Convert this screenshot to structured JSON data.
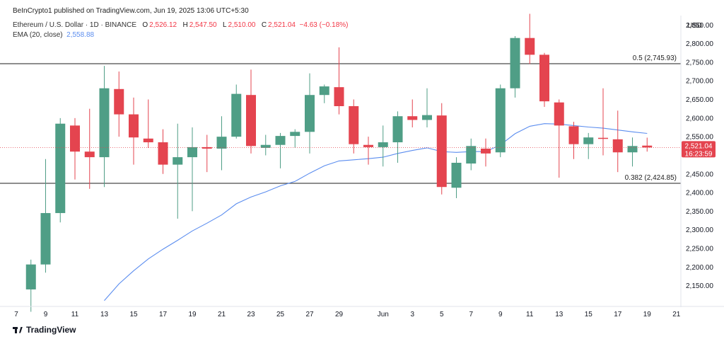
{
  "publisher": "BeInCrypto1 published on TradingView.com, Jun 19, 2025 13:06 UTC+5:30",
  "legend": {
    "symbol": "Ethereum / U.S. Dollar · 1D · BINANCE",
    "open_label": "O",
    "open": "2,526.12",
    "high_label": "H",
    "high": "2,547.50",
    "low_label": "L",
    "low": "2,510.00",
    "close_label": "C",
    "close": "2,521.04",
    "change": "−4.63 (−0.18%)",
    "ema_label": "EMA (20, close)",
    "ema_value": "2,558.88"
  },
  "axis_currency": "USD",
  "footer": "TradingView",
  "colors": {
    "up": "#4f9e86",
    "down": "#e4444f",
    "ema": "#5b8def",
    "level": "#4a4a4a"
  },
  "chart_data": {
    "type": "candlestick",
    "x_dates": [
      "May 8",
      "May 9",
      "May 10",
      "May 11",
      "May 12",
      "May 13",
      "May 14",
      "May 15",
      "May 16",
      "May 17",
      "May 18",
      "May 19",
      "May 20",
      "May 21",
      "May 22",
      "May 23",
      "May 24",
      "May 25",
      "May 26",
      "May 27",
      "May 28",
      "May 29",
      "May 30",
      "May 31",
      "Jun 1",
      "Jun 2",
      "Jun 3",
      "Jun 4",
      "Jun 5",
      "Jun 6",
      "Jun 7",
      "Jun 8",
      "Jun 9",
      "Jun 10",
      "Jun 11",
      "Jun 12",
      "Jun 13",
      "Jun 14",
      "Jun 15",
      "Jun 16",
      "Jun 17",
      "Jun 18",
      "Jun 19"
    ],
    "candles": [
      {
        "o": 2140,
        "h": 2220,
        "l": 2080,
        "c": 2207
      },
      {
        "o": 2207,
        "h": 2490,
        "l": 2185,
        "c": 2345
      },
      {
        "o": 2345,
        "h": 2600,
        "l": 2320,
        "c": 2585
      },
      {
        "o": 2580,
        "h": 2600,
        "l": 2435,
        "c": 2510
      },
      {
        "o": 2510,
        "h": 2625,
        "l": 2410,
        "c": 2495
      },
      {
        "o": 2495,
        "h": 2740,
        "l": 2415,
        "c": 2680
      },
      {
        "o": 2678,
        "h": 2725,
        "l": 2550,
        "c": 2610
      },
      {
        "o": 2610,
        "h": 2655,
        "l": 2475,
        "c": 2548
      },
      {
        "o": 2545,
        "h": 2650,
        "l": 2520,
        "c": 2535
      },
      {
        "o": 2535,
        "h": 2570,
        "l": 2450,
        "c": 2475
      },
      {
        "o": 2475,
        "h": 2585,
        "l": 2330,
        "c": 2495
      },
      {
        "o": 2495,
        "h": 2575,
        "l": 2350,
        "c": 2522
      },
      {
        "o": 2522,
        "h": 2555,
        "l": 2455,
        "c": 2518
      },
      {
        "o": 2518,
        "h": 2605,
        "l": 2460,
        "c": 2550
      },
      {
        "o": 2550,
        "h": 2690,
        "l": 2545,
        "c": 2665
      },
      {
        "o": 2662,
        "h": 2730,
        "l": 2505,
        "c": 2525
      },
      {
        "o": 2520,
        "h": 2555,
        "l": 2500,
        "c": 2528
      },
      {
        "o": 2528,
        "h": 2560,
        "l": 2465,
        "c": 2552
      },
      {
        "o": 2552,
        "h": 2570,
        "l": 2520,
        "c": 2563
      },
      {
        "o": 2563,
        "h": 2720,
        "l": 2505,
        "c": 2662
      },
      {
        "o": 2662,
        "h": 2690,
        "l": 2640,
        "c": 2685
      },
      {
        "o": 2683,
        "h": 2790,
        "l": 2610,
        "c": 2632
      },
      {
        "o": 2632,
        "h": 2650,
        "l": 2505,
        "c": 2530
      },
      {
        "o": 2528,
        "h": 2550,
        "l": 2475,
        "c": 2522
      },
      {
        "o": 2522,
        "h": 2580,
        "l": 2470,
        "c": 2535
      },
      {
        "o": 2535,
        "h": 2618,
        "l": 2480,
        "c": 2605
      },
      {
        "o": 2605,
        "h": 2650,
        "l": 2575,
        "c": 2595
      },
      {
        "o": 2595,
        "h": 2680,
        "l": 2575,
        "c": 2608
      },
      {
        "o": 2607,
        "h": 2640,
        "l": 2395,
        "c": 2415
      },
      {
        "o": 2413,
        "h": 2495,
        "l": 2385,
        "c": 2480
      },
      {
        "o": 2478,
        "h": 2545,
        "l": 2460,
        "c": 2525
      },
      {
        "o": 2518,
        "h": 2545,
        "l": 2470,
        "c": 2505
      },
      {
        "o": 2508,
        "h": 2690,
        "l": 2495,
        "c": 2680
      },
      {
        "o": 2680,
        "h": 2820,
        "l": 2655,
        "c": 2815
      },
      {
        "o": 2815,
        "h": 2880,
        "l": 2745,
        "c": 2770
      },
      {
        "o": 2770,
        "h": 2775,
        "l": 2630,
        "c": 2645
      },
      {
        "o": 2642,
        "h": 2650,
        "l": 2440,
        "c": 2580
      },
      {
        "o": 2578,
        "h": 2590,
        "l": 2490,
        "c": 2530
      },
      {
        "o": 2530,
        "h": 2560,
        "l": 2490,
        "c": 2548
      },
      {
        "o": 2547,
        "h": 2680,
        "l": 2500,
        "c": 2545
      },
      {
        "o": 2543,
        "h": 2620,
        "l": 2455,
        "c": 2508
      },
      {
        "o": 2508,
        "h": 2548,
        "l": 2470,
        "c": 2525
      },
      {
        "o": 2526.12,
        "h": 2547.5,
        "l": 2510,
        "c": 2521.04
      }
    ],
    "ema": [
      {
        "date": "May 13",
        "v": 2110
      },
      {
        "date": "May 14",
        "v": 2155
      },
      {
        "date": "May 15",
        "v": 2190
      },
      {
        "date": "May 16",
        "v": 2222
      },
      {
        "date": "May 17",
        "v": 2248
      },
      {
        "date": "May 18",
        "v": 2272
      },
      {
        "date": "May 19",
        "v": 2297
      },
      {
        "date": "May 20",
        "v": 2318
      },
      {
        "date": "May 21",
        "v": 2340
      },
      {
        "date": "May 22",
        "v": 2370
      },
      {
        "date": "May 23",
        "v": 2388
      },
      {
        "date": "May 24",
        "v": 2402
      },
      {
        "date": "May 25",
        "v": 2418
      },
      {
        "date": "May 26",
        "v": 2430
      },
      {
        "date": "May 27",
        "v": 2452
      },
      {
        "date": "May 28",
        "v": 2472
      },
      {
        "date": "May 29",
        "v": 2485
      },
      {
        "date": "May 30",
        "v": 2488
      },
      {
        "date": "May 31",
        "v": 2491
      },
      {
        "date": "Jun 1",
        "v": 2495
      },
      {
        "date": "Jun 2",
        "v": 2505
      },
      {
        "date": "Jun 3",
        "v": 2513
      },
      {
        "date": "Jun 4",
        "v": 2520
      },
      {
        "date": "Jun 5",
        "v": 2510
      },
      {
        "date": "Jun 6",
        "v": 2508
      },
      {
        "date": "Jun 7",
        "v": 2510
      },
      {
        "date": "Jun 8",
        "v": 2510
      },
      {
        "date": "Jun 9",
        "v": 2528
      },
      {
        "date": "Jun 10",
        "v": 2558
      },
      {
        "date": "Jun 11",
        "v": 2578
      },
      {
        "date": "Jun 12",
        "v": 2585
      },
      {
        "date": "Jun 13",
        "v": 2584
      },
      {
        "date": "Jun 14",
        "v": 2580
      },
      {
        "date": "Jun 15",
        "v": 2576
      },
      {
        "date": "Jun 16",
        "v": 2573
      },
      {
        "date": "Jun 17",
        "v": 2568
      },
      {
        "date": "Jun 18",
        "v": 2563
      },
      {
        "date": "Jun 19",
        "v": 2558.88
      }
    ],
    "levels": [
      {
        "value": 2745.93,
        "label": "0.5 (2,745.93)"
      },
      {
        "value": 2424.85,
        "label": "0.382 (2,424.85)"
      }
    ],
    "last_price": {
      "value": 2521.04,
      "label": "2,521.04",
      "countdown": "16:23:59"
    },
    "y_ticks": [
      2150,
      2200,
      2250,
      2300,
      2350,
      2400,
      2450,
      2500,
      2550,
      2600,
      2650,
      2700,
      2750,
      2800,
      2850
    ],
    "y_tick_labels": [
      "2,150.00",
      "2,200.00",
      "2,250.00",
      "2,300.00",
      "2,350.00",
      "2,400.00",
      "2,450.00",
      "2,500.00",
      "2,550.00",
      "2,600.00",
      "2,650.00",
      "2,700.00",
      "2,750.00",
      "2,800.00",
      "2,850.00"
    ],
    "x_ticks": [
      {
        "date": "May 7",
        "label": "7"
      },
      {
        "date": "May 9",
        "label": "9"
      },
      {
        "date": "May 11",
        "label": "11"
      },
      {
        "date": "May 13",
        "label": "13"
      },
      {
        "date": "May 15",
        "label": "15"
      },
      {
        "date": "May 17",
        "label": "17"
      },
      {
        "date": "May 19",
        "label": "19"
      },
      {
        "date": "May 21",
        "label": "21"
      },
      {
        "date": "May 23",
        "label": "23"
      },
      {
        "date": "May 25",
        "label": "25"
      },
      {
        "date": "May 27",
        "label": "27"
      },
      {
        "date": "May 29",
        "label": "29"
      },
      {
        "date": "Jun 1",
        "label": "Jun"
      },
      {
        "date": "Jun 3",
        "label": "3"
      },
      {
        "date": "Jun 5",
        "label": "5"
      },
      {
        "date": "Jun 7",
        "label": "7"
      },
      {
        "date": "Jun 9",
        "label": "9"
      },
      {
        "date": "Jun 11",
        "label": "11"
      },
      {
        "date": "Jun 13",
        "label": "13"
      },
      {
        "date": "Jun 15",
        "label": "15"
      },
      {
        "date": "Jun 17",
        "label": "17"
      },
      {
        "date": "Jun 19",
        "label": "19"
      },
      {
        "date": "Jun 21",
        "label": "21"
      }
    ],
    "ylim": [
      2100,
      2860
    ],
    "grid": false
  }
}
